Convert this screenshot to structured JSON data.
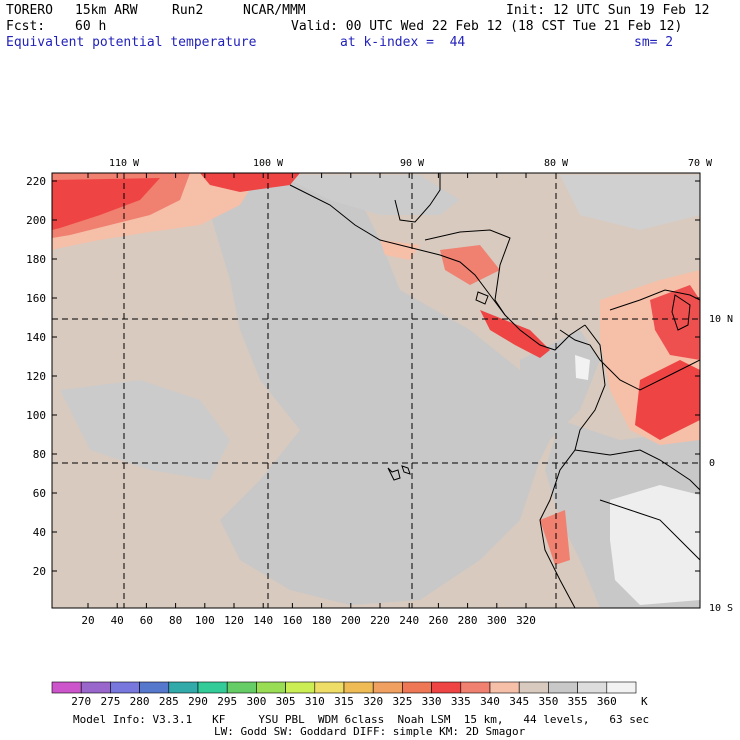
{
  "header": {
    "model": "TORERO",
    "resolution": "15km ARW",
    "run": "Run2",
    "org": "NCAR/MMM",
    "init": "Init: 12 UTC Sun 19 Feb 12",
    "fcst_label": "Fcst:",
    "fcst_value": "60 h",
    "valid": "Valid: 00 UTC Wed 22 Feb 12 (18 CST Tue 21 Feb 12)",
    "field": "Equivalent potential temperature",
    "k_index": "at k-index =  44",
    "smooth": "sm= 2"
  },
  "map": {
    "top_lon_labels": [
      "110 W",
      "100 W",
      "90 W",
      "80 W",
      "70 W"
    ],
    "right_lat_labels": [
      "10 N",
      "0",
      "10 S"
    ],
    "y_ticks": [
      "220",
      "200",
      "180",
      "160",
      "140",
      "120",
      "100",
      "80",
      "60",
      "40",
      "20"
    ],
    "x_ticks": [
      "20",
      "40",
      "60",
      "80",
      "100",
      "120",
      "140",
      "160",
      "180",
      "200",
      "220",
      "240",
      "260",
      "280",
      "300",
      "320"
    ]
  },
  "colorbar": {
    "labels": [
      "270",
      "275",
      "280",
      "285",
      "290",
      "295",
      "300",
      "305",
      "310",
      "315",
      "320",
      "325",
      "330",
      "335",
      "340",
      "345",
      "350",
      "355",
      "360"
    ],
    "unit": "K",
    "colors": [
      "#cc55cc",
      "#9966cc",
      "#7777dd",
      "#5577cc",
      "#33aaaa",
      "#33cc99",
      "#66cc66",
      "#99dd55",
      "#ccee55",
      "#eedd66",
      "#eebb55",
      "#f0a060",
      "#ee7755",
      "#ee4444",
      "#f08070",
      "#f5bfa8",
      "#d8cabe",
      "#c8c8c8",
      "#dddddd",
      "#f2f2f2"
    ]
  },
  "footer": {
    "line1": "Model Info: V3.3.1   KF     YSU PBL  WDM 6class  Noah LSM  15 km,   44 levels,   63 sec",
    "line2": "LW: Godd SW: Goddard DIFF: simple KM: 2D Smagor"
  }
}
